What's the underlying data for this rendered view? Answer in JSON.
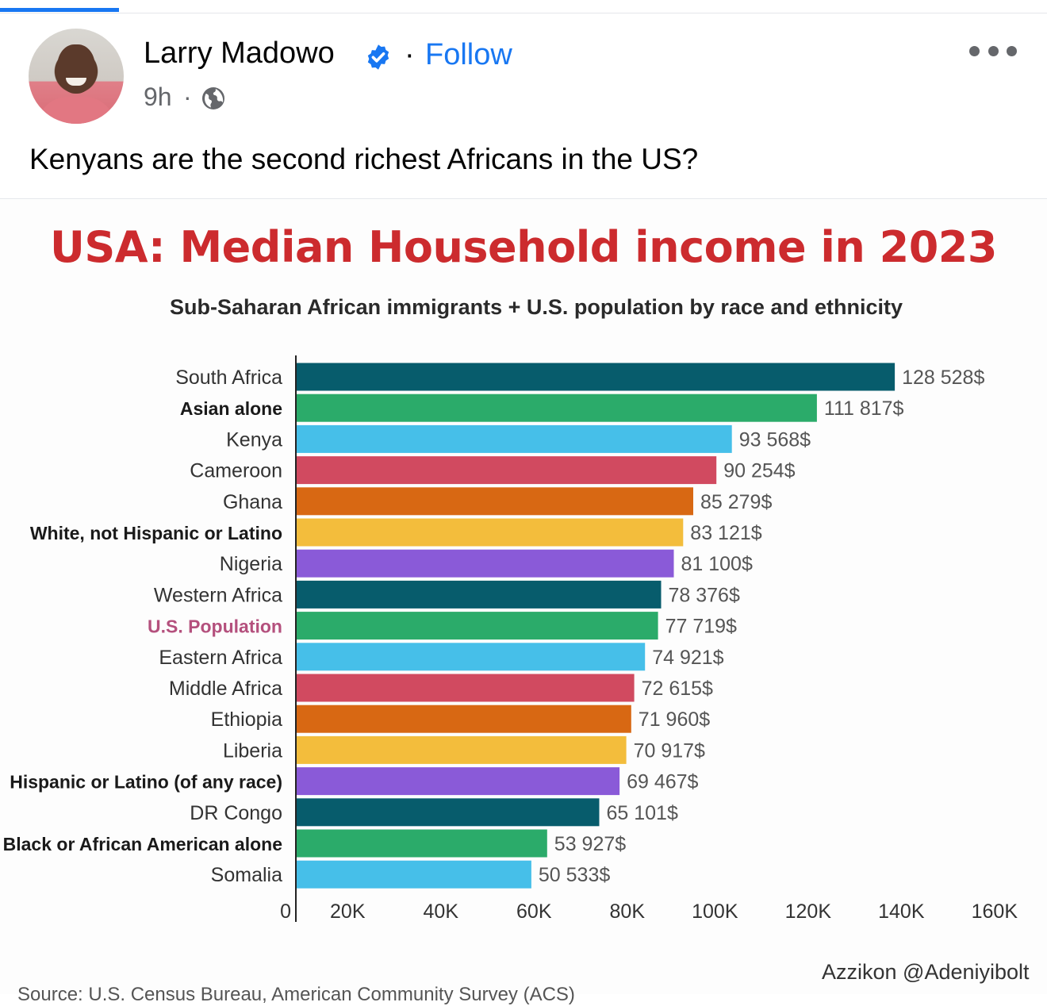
{
  "post": {
    "author": "Larry Madowo",
    "follow_prefix": "·",
    "follow_label": "Follow",
    "time": "9h",
    "time_separator": "·",
    "text": "Kenyans are the second richest Africans in the US?",
    "icons": {
      "avatar": "profile-photo",
      "verified": "verified-badge-icon",
      "privacy": "globe-icon",
      "more": "more-options-icon"
    }
  },
  "chart_data": {
    "type": "bar",
    "orientation": "horizontal",
    "title": "USA: Median Household income in 2023",
    "subtitle": "Sub-Saharan African immigrants + U.S. population by race and ethnicity",
    "categories": [
      "South Africa",
      "Asian alone",
      "Kenya",
      "Cameroon",
      "Ghana",
      "White, not Hispanic or Latino",
      "Nigeria",
      "Western Africa",
      "U.S. Population",
      "Eastern Africa",
      "Middle Africa",
      "Ethiopia",
      "Liberia",
      "Hispanic or Latino (of any race)",
      "DR Congo",
      "Black or African American alone",
      "Somalia"
    ],
    "values": [
      128528,
      111817,
      93568,
      90254,
      85279,
      83121,
      81100,
      78376,
      77719,
      74921,
      72615,
      71960,
      70917,
      69467,
      65101,
      53927,
      50533
    ],
    "value_labels": [
      "128 528$",
      "111 817$",
      "93 568$",
      "90 254$",
      "85 279$",
      "83 121$",
      "81 100$",
      "78 376$",
      "77 719$",
      "74 921$",
      "72 615$",
      "71 960$",
      "70 917$",
      "69 467$",
      "65 101$",
      "53 927$",
      "50 533$"
    ],
    "bold_categories": [
      "Asian alone",
      "White, not Hispanic or Latino",
      "U.S. Population",
      "Hispanic or Latino (of any race)",
      "Black or African American alone"
    ],
    "highlight_category": "U.S. Population",
    "colors": [
      "#075c6c",
      "#2bab6a",
      "#46bfe9",
      "#d14a60",
      "#d86813",
      "#f3bd3c",
      "#8a5ad8"
    ],
    "highlight_color": "#b4507d",
    "xticks": [
      "0",
      "20K",
      "40K",
      "60K",
      "80K",
      "100K",
      "120K",
      "140K",
      "160K"
    ],
    "xlim": [
      0,
      160000
    ],
    "grid": false,
    "legend": "none",
    "credit": "Azzikon @Adeniyibolt",
    "source_note": "Source: U.S. Census Bureau, American Community Survey (ACS)"
  }
}
